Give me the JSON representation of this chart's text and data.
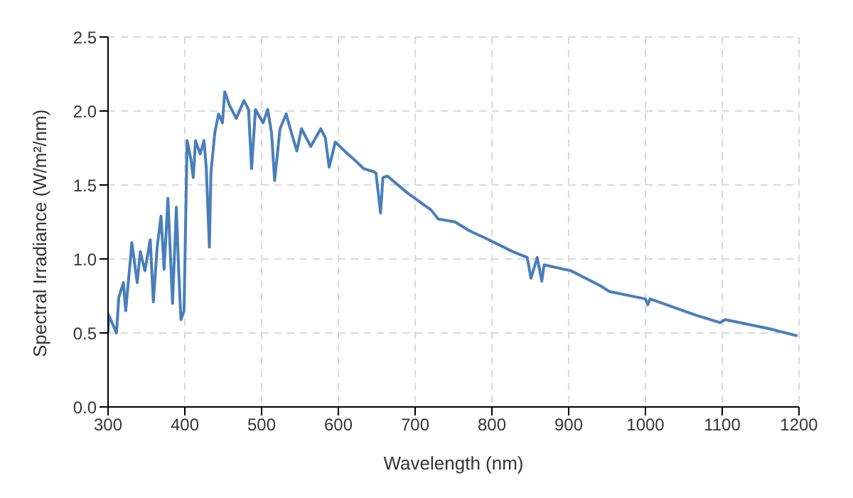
{
  "chart_data": {
    "type": "line",
    "xlabel": "Wavelength (nm)",
    "ylabel": "Spectral Irradiance (W/m²/nm)",
    "series": [
      {
        "color": "#4a7ebb",
        "x": [
          300,
          301,
          311,
          314,
          320,
          323,
          329,
          331,
          338,
          342,
          348,
          355,
          359,
          364,
          369,
          373,
          378,
          384,
          389,
          392,
          395,
          399,
          403,
          408,
          411,
          414,
          420,
          425,
          428,
          432,
          434,
          439,
          444,
          449,
          452,
          458,
          467,
          477,
          483,
          487,
          492,
          502,
          508,
          513,
          517,
          524,
          532,
          539,
          546,
          552,
          564,
          577,
          583,
          588,
          596,
          608,
          621,
          633,
          646,
          649,
          655,
          658,
          664,
          689,
          721,
          730,
          752,
          771,
          796,
          827,
          846,
          851,
          859,
          865,
          868,
          903,
          941,
          953,
          1000,
          1003,
          1006,
          1066,
          1097,
          1104,
          1160,
          1198
        ],
        "values": [
          0.5,
          0.62,
          0.5,
          0.74,
          0.84,
          0.65,
          0.99,
          1.11,
          0.84,
          1.05,
          0.92,
          1.13,
          0.71,
          1.08,
          1.29,
          0.93,
          1.41,
          0.7,
          1.35,
          0.92,
          0.59,
          0.65,
          1.8,
          1.67,
          1.55,
          1.8,
          1.71,
          1.8,
          1.61,
          1.08,
          1.58,
          1.85,
          1.98,
          1.92,
          2.13,
          2.04,
          1.95,
          2.07,
          2.01,
          1.61,
          2.01,
          1.92,
          2.01,
          1.85,
          1.53,
          1.88,
          1.98,
          1.85,
          1.73,
          1.88,
          1.76,
          1.88,
          1.82,
          1.62,
          1.79,
          1.73,
          1.67,
          1.61,
          1.59,
          1.58,
          1.31,
          1.55,
          1.56,
          1.45,
          1.33,
          1.27,
          1.25,
          1.19,
          1.13,
          1.05,
          1.01,
          0.87,
          1.01,
          0.85,
          0.96,
          0.92,
          0.82,
          0.78,
          0.73,
          0.69,
          0.73,
          0.62,
          0.57,
          0.59,
          0.53,
          0.48
        ]
      }
    ],
    "xlim": [
      300,
      1200
    ],
    "xticks": [
      300,
      400,
      500,
      600,
      700,
      800,
      900,
      1000,
      1100,
      1200
    ],
    "ylim": [
      0,
      2.5
    ],
    "yticks": [
      {
        "value": 0,
        "label": "0.0"
      },
      {
        "value": 0.5,
        "label": "0.5"
      },
      {
        "value": 1,
        "label": "1.0"
      },
      {
        "value": 1.5,
        "label": "1.5"
      },
      {
        "value": 2,
        "label": "2.0"
      },
      {
        "value": 2.5,
        "label": "2.5"
      }
    ],
    "grid": true,
    "marker": "none",
    "line_style": "solid"
  }
}
